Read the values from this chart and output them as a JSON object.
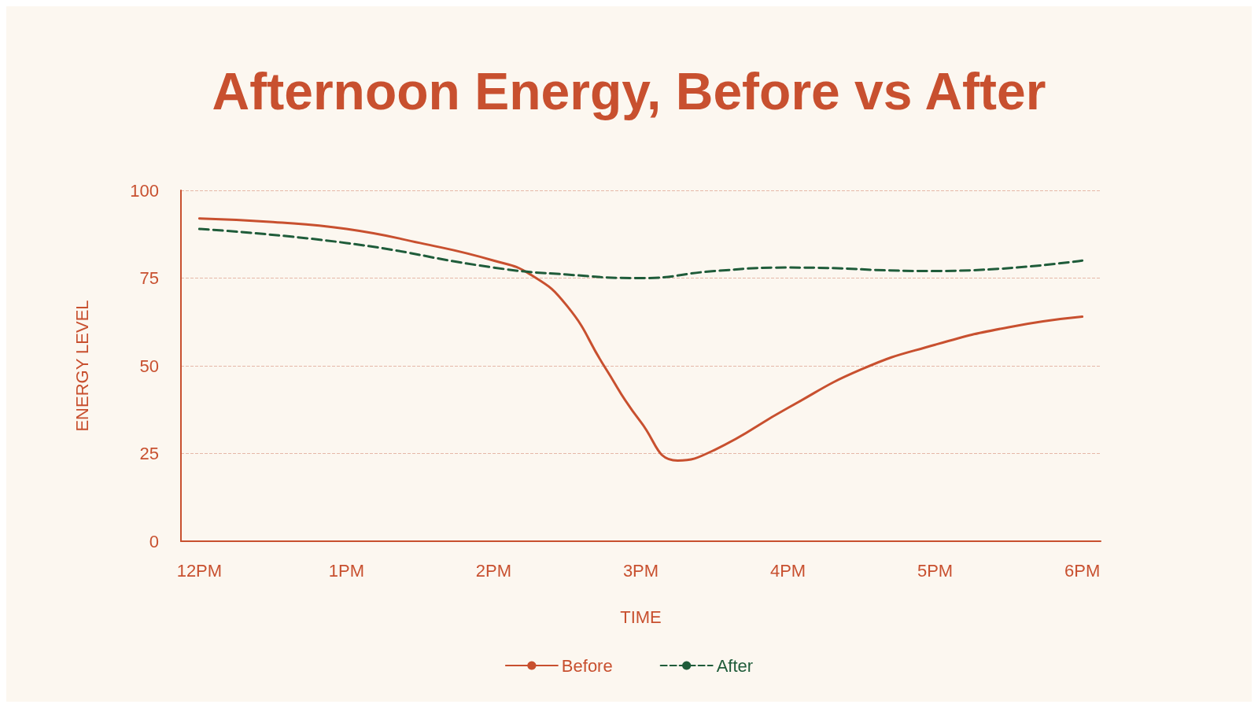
{
  "chart_data": {
    "type": "line",
    "title": "Afternoon Energy, Before vs After",
    "xlabel": "TIME",
    "ylabel": "ENERGY LEVEL",
    "categories": [
      "12PM",
      null,
      null,
      null,
      "1PM",
      null,
      null,
      null,
      "2PM",
      null,
      null,
      null,
      "3PM",
      null,
      null,
      null,
      "4PM",
      null,
      null,
      null,
      "5PM",
      null,
      null,
      null,
      "6PM"
    ],
    "ylim": [
      0,
      100
    ],
    "yticks": [
      0,
      25,
      50,
      75,
      100
    ],
    "grid": "y",
    "legend": "bottom",
    "marker": "none",
    "series": [
      {
        "name": "Before",
        "color": "#c8502f",
        "line_style": "solid",
        "values": [
          92,
          null,
          91,
          null,
          89,
          null,
          85,
          null,
          80,
          76,
          67,
          50,
          34,
          23,
          26,
          null,
          38,
          null,
          49,
          null,
          56,
          null,
          61,
          null,
          64
        ]
      },
      {
        "name": "After",
        "color": "#1f5c3a",
        "line_style": "dashed",
        "values": [
          89,
          null,
          null,
          null,
          85,
          null,
          null,
          null,
          78,
          null,
          76,
          null,
          75,
          null,
          77,
          null,
          78,
          null,
          null,
          null,
          77,
          null,
          null,
          null,
          80
        ]
      }
    ]
  }
}
